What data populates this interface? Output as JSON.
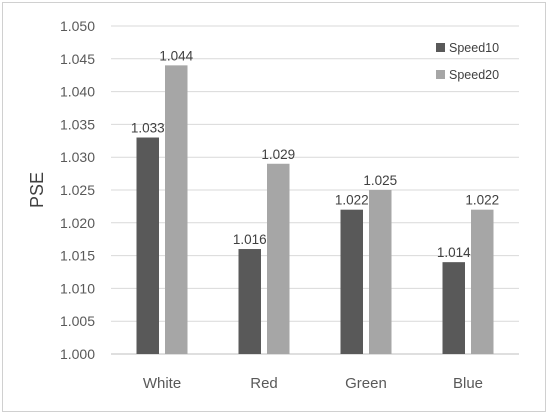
{
  "chart_data": {
    "type": "bar",
    "categories": [
      "White",
      "Red",
      "Green",
      "Blue"
    ],
    "series": [
      {
        "name": "Speed10",
        "color": "#595959",
        "values": [
          1.033,
          1.016,
          1.022,
          1.014
        ],
        "labels": [
          "1.033",
          "1.016",
          "1.022",
          "1.014"
        ]
      },
      {
        "name": "Speed20",
        "color": "#a6a6a6",
        "values": [
          1.044,
          1.029,
          1.025,
          1.022
        ],
        "labels": [
          "1.044",
          "1.029",
          "1.025",
          "1.022"
        ]
      }
    ],
    "title": "",
    "xlabel": "",
    "ylabel": "PSE",
    "ylim": [
      1.0,
      1.05
    ],
    "yticks": [
      "1.000",
      "1.005",
      "1.010",
      "1.015",
      "1.020",
      "1.025",
      "1.030",
      "1.035",
      "1.040",
      "1.045",
      "1.050"
    ],
    "grid": true,
    "legend_position": "top-right"
  }
}
